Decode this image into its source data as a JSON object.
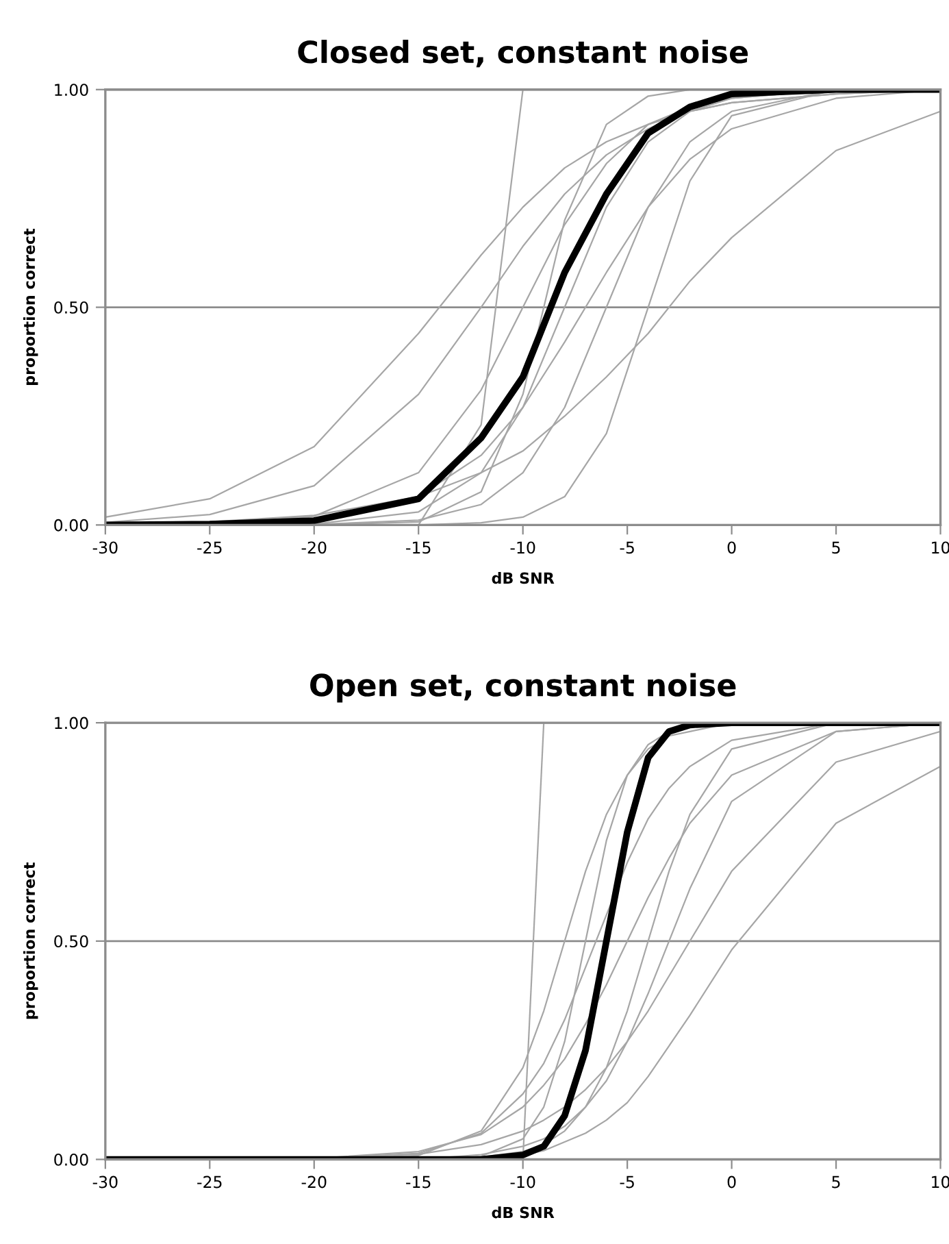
{
  "chart_data": [
    {
      "type": "line",
      "title": "Closed set, constant noise",
      "xlabel": "dB SNR",
      "ylabel": "proportion correct",
      "x": [
        -30,
        -25,
        -20,
        -15,
        -12,
        -10,
        -8,
        -6,
        -4,
        -2,
        0,
        5,
        10
      ],
      "series": [
        {
          "color": "#a6a6a6",
          "values": [
            0.006,
            0.024,
            0.09,
            0.3,
            0.5,
            0.64,
            0.76,
            0.85,
            0.91,
            0.95,
            0.97,
            0.99,
            1.0
          ]
        },
        {
          "color": "#a6a6a6",
          "values": [
            null,
            0.002,
            0.02,
            0.12,
            0.31,
            0.5,
            0.69,
            0.83,
            0.92,
            0.96,
            0.98,
            1.0,
            null
          ]
        },
        {
          "color": "#a6a6a6",
          "values": [
            null,
            0.002,
            0.013,
            0.065,
            0.16,
            0.27,
            0.42,
            0.58,
            0.73,
            0.84,
            0.91,
            0.98,
            1.0
          ]
        },
        {
          "color": "#a6a6a6",
          "values": [
            null,
            null,
            null,
            0.0,
            0.005,
            0.018,
            0.065,
            0.21,
            0.5,
            0.79,
            0.94,
            1.0,
            null
          ]
        },
        {
          "color": "#a6a6a6",
          "values": [
            0.002,
            0.007,
            0.022,
            0.065,
            0.12,
            0.17,
            0.25,
            0.34,
            0.44,
            0.56,
            0.66,
            0.86,
            0.95
          ]
        },
        {
          "color": "#a6a6a6",
          "values": [
            null,
            null,
            null,
            0.0,
            0.23,
            1.0,
            null,
            null,
            null,
            null,
            null,
            null,
            null
          ]
        },
        {
          "color": "#a6a6a6",
          "values": [
            0.0,
            0.0,
            0.002,
            0.03,
            0.12,
            0.27,
            0.5,
            0.73,
            0.88,
            0.95,
            0.98,
            1.0,
            null
          ]
        },
        {
          "color": "#a6a6a6",
          "values": [
            0.018,
            0.06,
            0.18,
            0.44,
            0.62,
            0.73,
            0.82,
            0.88,
            0.92,
            0.95,
            0.97,
            0.99,
            1.0
          ]
        },
        {
          "color": "#a6a6a6",
          "values": [
            null,
            null,
            0.001,
            0.011,
            0.047,
            0.12,
            0.27,
            0.5,
            0.73,
            0.88,
            0.95,
            1.0,
            null
          ]
        },
        {
          "color": "#a6a6a6",
          "values": [
            null,
            null,
            0.0,
            0.007,
            0.076,
            0.3,
            0.7,
            0.92,
            0.985,
            1.0,
            null,
            null,
            null
          ]
        },
        {
          "color": "#000000",
          "values": [
            0.0,
            0.002,
            0.01,
            0.06,
            0.2,
            0.34,
            0.58,
            0.76,
            0.9,
            0.96,
            0.99,
            1.0,
            1.0
          ]
        }
      ],
      "xlim": [
        -30,
        10
      ],
      "xticks": [
        -30,
        -25,
        -20,
        -15,
        -10,
        -5,
        0,
        5,
        10
      ],
      "ylim": [
        0,
        1
      ],
      "yticks": [
        {
          "value": 0,
          "label": "0.00"
        },
        {
          "value": 0.5,
          "label": "0.50"
        },
        {
          "value": 1,
          "label": "1.00"
        }
      ],
      "grid": "y",
      "marker": "none",
      "line_style": "solid",
      "legend": false
    },
    {
      "type": "line",
      "title": "Open set, constant noise",
      "xlabel": "dB SNR",
      "ylabel": "proportion correct",
      "x": [
        -30,
        -25,
        -20,
        -15,
        -12,
        -10,
        -9,
        -8,
        -7,
        -6,
        -5,
        -4,
        -3,
        -2,
        0,
        5,
        10
      ],
      "series": [
        {
          "color": "#a6a6a6",
          "values": [
            null,
            null,
            0.0,
            0.009,
            0.065,
            0.21,
            0.34,
            0.5,
            0.66,
            0.79,
            0.88,
            0.94,
            0.97,
            0.98,
            1.0,
            null,
            null
          ]
        },
        {
          "color": "#a6a6a6",
          "values": [
            null,
            null,
            0.001,
            0.014,
            0.06,
            0.15,
            0.22,
            0.32,
            0.44,
            0.56,
            0.68,
            0.78,
            0.85,
            0.9,
            0.96,
            1.0,
            null
          ]
        },
        {
          "color": "#a6a6a6",
          "values": [
            null,
            null,
            null,
            0.0,
            0.005,
            0.018,
            0.034,
            0.065,
            0.12,
            0.21,
            0.34,
            0.5,
            0.66,
            0.79,
            0.94,
            1.0,
            null
          ]
        },
        {
          "color": "#a6a6a6",
          "values": [
            null,
            null,
            null,
            null,
            0.0,
            0.01,
            0.02,
            0.04,
            0.06,
            0.09,
            0.13,
            0.19,
            0.26,
            0.33,
            0.48,
            0.77,
            0.9
          ]
        },
        {
          "color": "#a6a6a6",
          "values": [
            null,
            null,
            null,
            null,
            null,
            0.0,
            1.0,
            null,
            null,
            null,
            null,
            null,
            null,
            null,
            null,
            null,
            null
          ]
        },
        {
          "color": "#a6a6a6",
          "values": [
            null,
            null,
            null,
            0.0,
            0.007,
            0.047,
            0.12,
            0.27,
            0.5,
            0.73,
            0.88,
            0.95,
            0.98,
            0.99,
            1.0,
            null,
            null
          ]
        },
        {
          "color": "#a6a6a6",
          "values": [
            null,
            0.0,
            0.002,
            0.018,
            0.057,
            0.12,
            0.17,
            0.23,
            0.31,
            0.4,
            0.5,
            0.6,
            0.69,
            0.77,
            0.88,
            0.98,
            1.0
          ]
        },
        {
          "color": "#a6a6a6",
          "values": [
            null,
            null,
            null,
            0.0,
            0.011,
            0.03,
            0.047,
            0.076,
            0.12,
            0.18,
            0.27,
            0.38,
            0.5,
            0.62,
            0.82,
            0.98,
            1.0
          ]
        },
        {
          "color": "#a6a6a6",
          "values": [
            null,
            0.0,
            0.002,
            0.012,
            0.034,
            0.065,
            0.09,
            0.12,
            0.16,
            0.21,
            0.27,
            0.34,
            0.42,
            0.5,
            0.66,
            0.91,
            0.98
          ]
        },
        {
          "color": "#000000",
          "values": [
            0.0,
            0.0,
            0.0,
            0.0,
            0.0,
            0.01,
            0.03,
            0.1,
            0.25,
            0.5,
            0.75,
            0.92,
            0.98,
            0.995,
            1.0,
            1.0,
            1.0
          ]
        }
      ],
      "xlim": [
        -30,
        10
      ],
      "xticks": [
        -30,
        -25,
        -20,
        -15,
        -10,
        -5,
        0,
        5,
        10
      ],
      "ylim": [
        0,
        1
      ],
      "yticks": [
        {
          "value": 0,
          "label": "0.00"
        },
        {
          "value": 0.5,
          "label": "0.50"
        },
        {
          "value": 1,
          "label": "1.00"
        }
      ],
      "grid": "y",
      "marker": "none",
      "line_style": "solid",
      "legend": false
    }
  ]
}
